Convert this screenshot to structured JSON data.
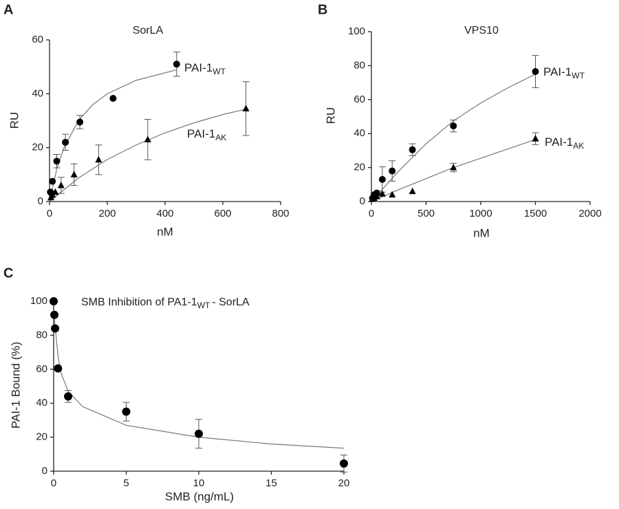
{
  "chart_data": [
    {
      "type": "scatter",
      "panel_label": "A",
      "title": "SorLA",
      "xlabel": "nM",
      "ylabel": "RU",
      "xlim": [
        0,
        800
      ],
      "xticks": [
        0,
        200,
        400,
        600,
        800
      ],
      "ylim": [
        0,
        60
      ],
      "yticks": [
        0,
        20,
        40,
        60
      ],
      "series": [
        {
          "name": {
            "text": "PAI-1",
            "sub": "WT"
          },
          "marker": "circle",
          "color": "#000000",
          "x": [
            3,
            10,
            25,
            55,
            105,
            220,
            440
          ],
          "values": [
            3.5,
            7.5,
            15,
            22,
            29.5,
            38.3,
            51
          ],
          "errors": [
            null,
            null,
            2.5,
            3,
            2.5,
            null,
            4.5
          ],
          "fit": {
            "x": [
              0,
              25,
              50,
              100,
              150,
              200,
              300,
              440
            ],
            "y": [
              0,
              12,
              20,
              30,
              36,
              40,
              45,
              48.9
            ]
          }
        },
        {
          "name": {
            "text": "PAI-1",
            "sub": "AK"
          },
          "marker": "triangle",
          "color": "#000000",
          "x": [
            5,
            10,
            20,
            40,
            85,
            170,
            340,
            680
          ],
          "values": [
            1.5,
            2.5,
            3.5,
            6,
            10,
            15.5,
            23,
            34.5
          ],
          "errors": [
            null,
            null,
            null,
            3,
            4,
            5.5,
            7.5,
            10
          ],
          "fit": {
            "x": [
              0,
              100,
              200,
              300,
              400,
              500,
              600,
              680
            ],
            "y": [
              0,
              8.75,
              15.6,
              21,
              25.5,
              29.2,
              32.3,
              34.3
            ]
          }
        }
      ]
    },
    {
      "type": "scatter",
      "panel_label": "B",
      "title": "VPS10",
      "xlabel": "nM",
      "ylabel": "RU",
      "xlim": [
        0,
        2000
      ],
      "xticks": [
        0,
        500,
        1000,
        1500,
        2000
      ],
      "ylim": [
        0,
        100
      ],
      "yticks": [
        0,
        20,
        40,
        60,
        80,
        100
      ],
      "series": [
        {
          "name": {
            "text": "PAI-1",
            "sub": "WT"
          },
          "marker": "circle",
          "color": "#000000",
          "x": [
            10,
            25,
            50,
            100,
            190,
            375,
            750,
            1500
          ],
          "values": [
            2,
            4,
            5,
            13,
            18,
            30.5,
            44.5,
            76.5
          ],
          "errors": [
            null,
            null,
            null,
            7.5,
            6,
            3.5,
            3.5,
            9.5
          ],
          "fit": {
            "x": [
              0,
              250,
              500,
              750,
              1000,
              1250,
              1500
            ],
            "y": [
              0,
              18,
              34,
              47.5,
              58,
              67,
              75
            ]
          }
        },
        {
          "name": {
            "text": "PAI-1",
            "sub": "AK"
          },
          "marker": "triangle",
          "color": "#000000",
          "x": [
            10,
            25,
            50,
            100,
            190,
            375,
            750,
            1500
          ],
          "values": [
            1.5,
            2,
            3,
            4.5,
            4,
            6,
            20,
            37
          ],
          "errors": [
            null,
            null,
            null,
            null,
            null,
            null,
            2.5,
            3.5
          ],
          "fit": {
            "x": [
              0,
              250,
              500,
              750,
              1000,
              1250,
              1500
            ],
            "y": [
              0,
              7,
              13.5,
              20,
              25.5,
              31,
              36.5
            ]
          }
        }
      ]
    },
    {
      "type": "scatter",
      "panel_label": "C",
      "title": {
        "text": "SMB Inhibition of PA1-1",
        "sub": "WT",
        "tail": "- SorLA"
      },
      "xlabel": "SMB (ng/mL)",
      "ylabel": "PAI-1 Bound (%)",
      "xlim": [
        0,
        20
      ],
      "xticks": [
        0,
        5,
        10,
        15,
        20
      ],
      "ylim": [
        0,
        100
      ],
      "yticks": [
        0,
        20,
        40,
        60,
        80,
        100
      ],
      "series": [
        {
          "marker": "circle",
          "color": "#000000",
          "x": [
            0,
            0.05,
            0.1,
            0.3,
            1,
            5,
            10,
            20
          ],
          "values": [
            100,
            92,
            84,
            60.5,
            44,
            35,
            22,
            4.5
          ],
          "errors": [
            null,
            null,
            null,
            null,
            3.5,
            5.5,
            8.5,
            5
          ],
          "fit": {
            "x": [
              0,
              0.1,
              0.3,
              0.5,
              1,
              2,
              5,
              10,
              15,
              20
            ],
            "y": [
              95,
              85,
              68,
              58,
              47,
              38,
              27,
              20,
              16,
              13.5
            ]
          }
        }
      ]
    }
  ]
}
